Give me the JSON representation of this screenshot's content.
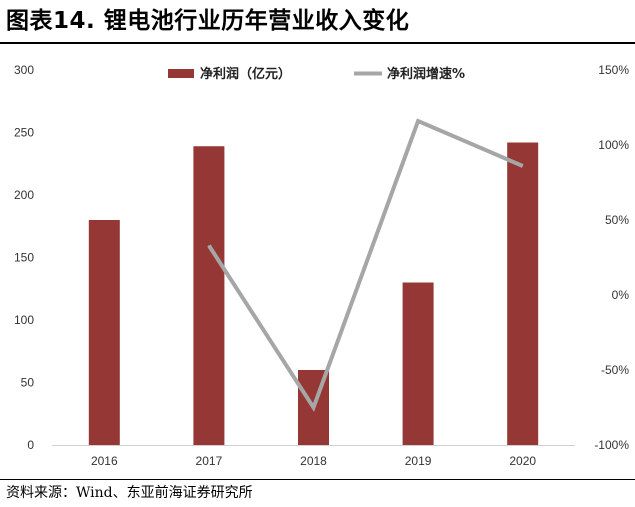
{
  "title": "图表14. 锂电池行业历年营业收入变化",
  "source": "资料来源：Wind、东亚前海证券研究所",
  "chart_data": {
    "type": "bar",
    "categories": [
      "2016",
      "2017",
      "2018",
      "2019",
      "2020"
    ],
    "series": [
      {
        "name": "净利润（亿元）",
        "type": "bar",
        "axis": "left",
        "color": "#953735",
        "values": [
          180,
          239,
          60,
          130,
          242
        ]
      },
      {
        "name": "净利润增速%",
        "type": "line",
        "axis": "right",
        "color": "#a6a6a6",
        "values": [
          null,
          33,
          -75,
          116,
          86
        ]
      }
    ],
    "y_left": {
      "min": 0,
      "max": 300,
      "ticks": [
        "0",
        "50",
        "100",
        "150",
        "200",
        "250",
        "300"
      ]
    },
    "y_right": {
      "min": -100,
      "max": 150,
      "ticks": [
        "-100%",
        "-50%",
        "0%",
        "50%",
        "100%",
        "150%"
      ]
    },
    "grid": false,
    "legend": "top-center"
  }
}
